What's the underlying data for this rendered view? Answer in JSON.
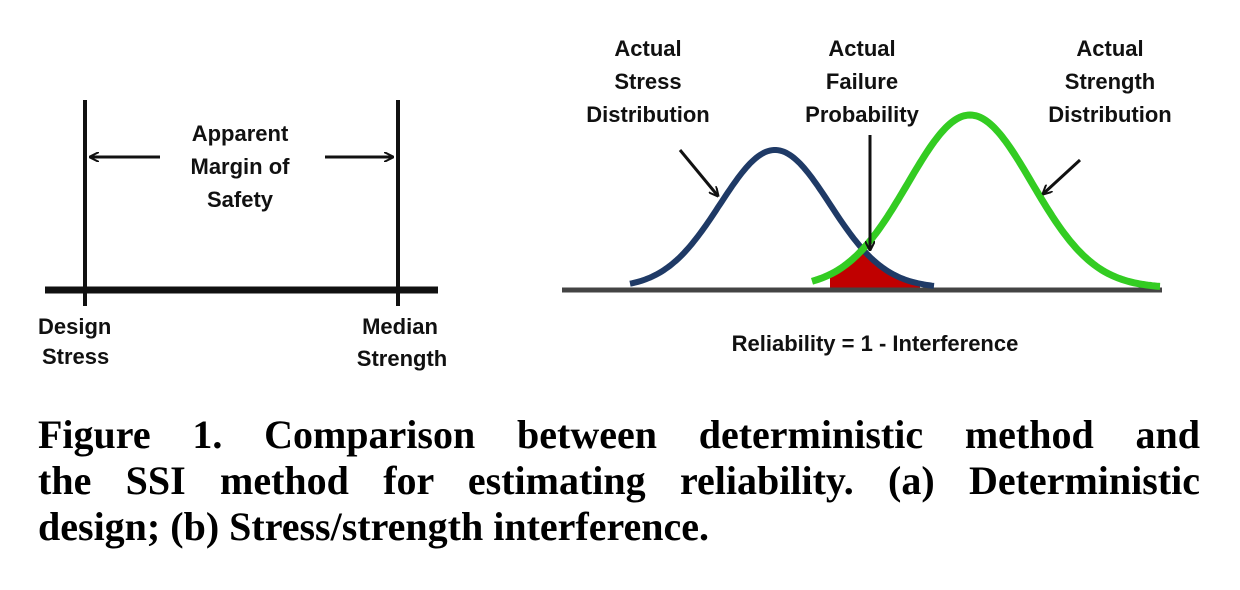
{
  "left_panel": {
    "margin_label": [
      "Apparent",
      "Margin of",
      "Safety"
    ],
    "design_stress": [
      "Design",
      "Stress"
    ],
    "median_strength": [
      "Median",
      "Strength"
    ]
  },
  "right_panel": {
    "stress_label": [
      "Actual",
      "Stress",
      "Distribution"
    ],
    "failure_label": [
      "Actual",
      "Failure",
      "Probability"
    ],
    "strength_label": [
      "Actual",
      "Strength",
      "Distribution"
    ],
    "equation": "Reliability = 1 - Interference"
  },
  "caption": [
    "Figure 1. Comparison between deterministic method and",
    "the SSI method for estimating reliability. (a) Deterministic",
    "design; (b) Stress/strength interference."
  ]
}
